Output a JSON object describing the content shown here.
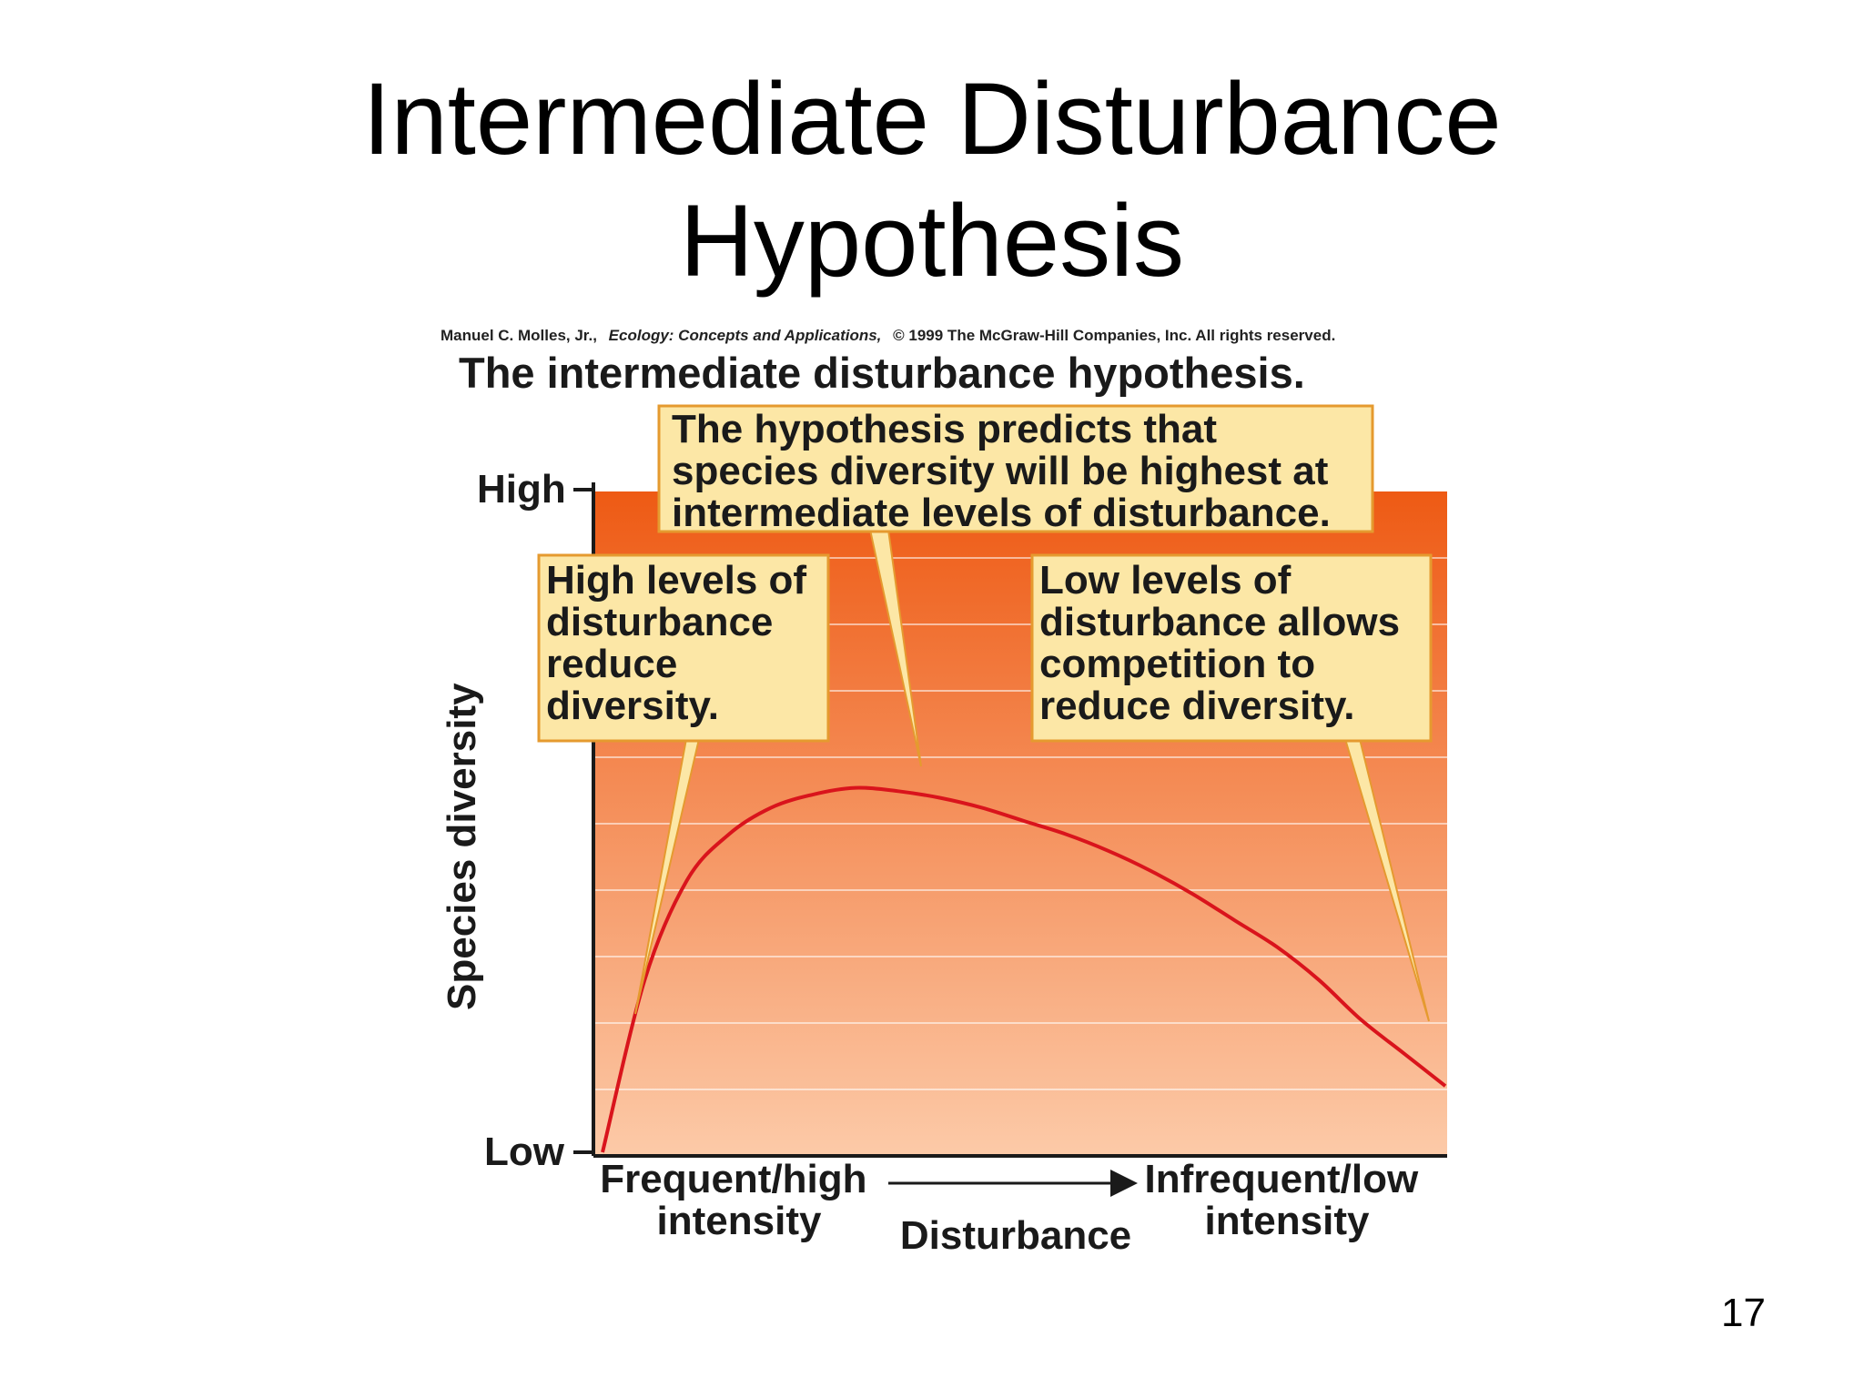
{
  "slide": {
    "title_line1": "Intermediate Disturbance",
    "title_line2": "Hypothesis",
    "page_number": "17"
  },
  "figure": {
    "credit_author": "Manuel C. Molles, Jr.,",
    "credit_book": "Ecology: Concepts and Applications,",
    "credit_rest": "© 1999 The McGraw-Hill Companies, Inc. All rights reserved.",
    "title": "The intermediate disturbance hypothesis.",
    "callouts": [
      {
        "lines": [
          "The hypothesis predicts that",
          "species diversity will be highest at",
          "intermediate levels of disturbance."
        ]
      },
      {
        "lines": [
          "High levels of",
          "disturbance",
          "reduce",
          "diversity."
        ]
      },
      {
        "lines": [
          "Low levels of",
          "disturbance allows",
          "competition to",
          "reduce diversity."
        ]
      }
    ],
    "colors": {
      "curve": "#d9141c",
      "plot_top": "#ee5a14",
      "plot_bottom": "#fccaa8",
      "callout_fill": "#fce7a6",
      "callout_border": "#e59a2f"
    }
  },
  "chart_data": {
    "type": "line",
    "title": "The intermediate disturbance hypothesis.",
    "xlabel": "Disturbance",
    "ylabel": "Species diversity",
    "x_tick_labels": [
      {
        "lines": [
          "Frequent/high",
          "intensity"
        ]
      },
      {
        "lines": [
          "Infrequent/low",
          "intensity"
        ]
      }
    ],
    "y_tick_labels": [
      "High",
      "Low"
    ],
    "xlim": [
      0,
      1
    ],
    "ylim": [
      0,
      1
    ],
    "grid": true,
    "series": [
      {
        "x": [
          0,
          0.05,
          0.1,
          0.15,
          0.2,
          0.25,
          0.3,
          0.35,
          0.4,
          0.45,
          0.5,
          0.55,
          0.6,
          0.65,
          0.7,
          0.75,
          0.8,
          0.85,
          0.9,
          0.95,
          1.0
        ],
        "y": [
          0.0,
          0.26,
          0.41,
          0.48,
          0.52,
          0.54,
          0.55,
          0.545,
          0.535,
          0.52,
          0.5,
          0.48,
          0.455,
          0.425,
          0.39,
          0.35,
          0.31,
          0.26,
          0.2,
          0.15,
          0.1
        ]
      }
    ]
  }
}
